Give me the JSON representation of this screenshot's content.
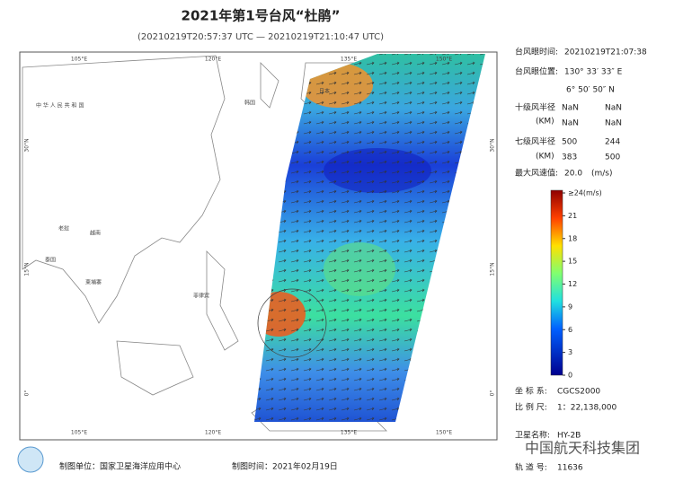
{
  "header": {
    "title": "2021年第1号台风“杜鹃”",
    "subtitle": "(20210219T20:57:37 UTC — 20210219T21:10:47 UTC)"
  },
  "map": {
    "lon_labels": [
      "105°E",
      "120°E",
      "135°E",
      "150°E"
    ],
    "lat_labels": [
      "30°N",
      "15°N",
      "0°"
    ],
    "place_labels": [
      "中 华 人 民 共 和 国",
      "韩国",
      "日本",
      "越南",
      "老挝",
      "泰国",
      "柬埔寨",
      "菲律宾"
    ]
  },
  "info": {
    "eye_time": {
      "label": "台风眼时间:",
      "value": "20210219T21:07:38"
    },
    "eye_position": {
      "label": "台风眼位置:",
      "lon": "130° 33′ 33″ E",
      "lat": "6° 50′ 50″ N"
    },
    "r10": {
      "label": "十级风半径",
      "unit": "(KM)",
      "values": [
        "NaN",
        "NaN",
        "NaN",
        "NaN"
      ]
    },
    "r7": {
      "label": "七级风半径",
      "unit": "(KM)",
      "values": [
        "500",
        "244",
        "383",
        "500"
      ]
    },
    "max_wind": {
      "label": "最大风速值:",
      "value": "20.0",
      "unit": "(m/s)"
    }
  },
  "colorbar": {
    "ticks": [
      {
        "value": 24,
        "label": "≥24(m/s)"
      },
      21,
      18,
      15,
      12,
      9,
      6,
      3,
      0
    ]
  },
  "meta": {
    "crs": {
      "label": "坐 标 系:",
      "value": "CGCS2000"
    },
    "scale": {
      "label": "比 例 尺:",
      "value": "1：22,138,000"
    },
    "satellite": {
      "label": "卫星名称:",
      "value": "HY-2B"
    },
    "orbit": {
      "label": "轨 道 号:",
      "value": "11636"
    }
  },
  "footer": {
    "producer": "制图单位：国家卫星海洋应用中心",
    "date": "制图时间：2021年02月19日",
    "watermark": "中国航天科技集团"
  }
}
